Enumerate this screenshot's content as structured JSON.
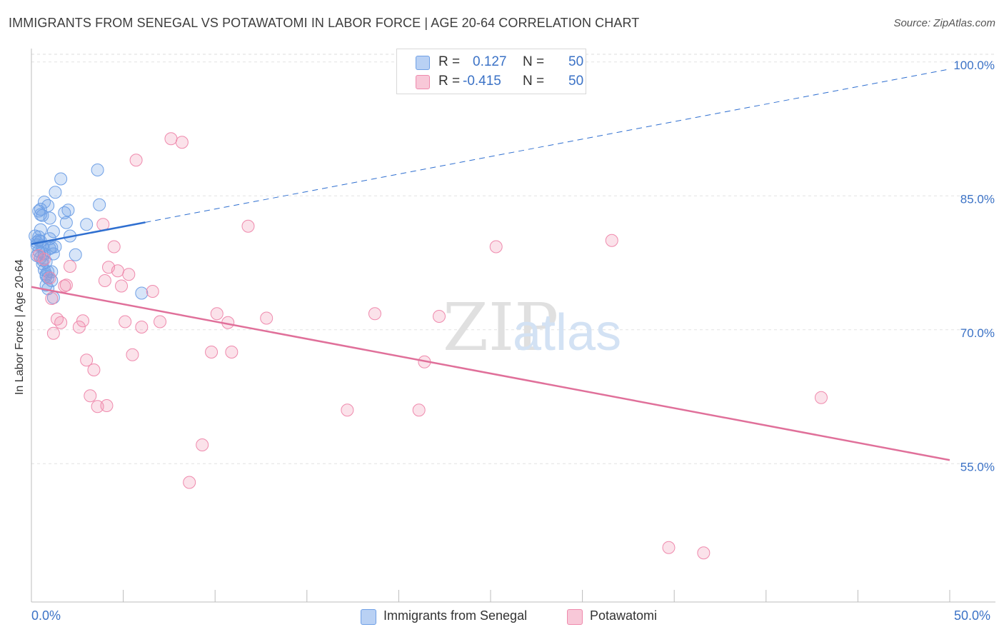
{
  "title": "IMMIGRANTS FROM SENEGAL VS POTAWATOMI IN LABOR FORCE | AGE 20-64 CORRELATION CHART",
  "source": "Source: ZipAtlas.com",
  "watermark": {
    "zip": "ZIP",
    "atlas": "atlas"
  },
  "legend": {
    "rows": [
      {
        "r_label": "R =",
        "r_value": "0.127",
        "n_label": "N =",
        "n_value": "50",
        "color": "#6fa0e6"
      },
      {
        "r_label": "R =",
        "r_value": "-0.415",
        "n_label": "N =",
        "n_value": "50",
        "color": "#ef8aad"
      }
    ]
  },
  "bottom_legend": [
    {
      "label": "Immigrants from Senegal",
      "color": "#6fa0e6"
    },
    {
      "label": "Potawatomi",
      "color": "#ef8aad"
    }
  ],
  "x_axis": {
    "min_label": "0.0%",
    "max_label": "50.0%"
  },
  "chart_data": {
    "type": "scatter",
    "title": "IMMIGRANTS FROM SENEGAL VS POTAWATOMI IN LABOR FORCE | AGE 20-64 CORRELATION CHART",
    "xlabel": "",
    "ylabel": "In Labor Force | Age 20-64",
    "xlim": [
      0,
      50
    ],
    "ylim": [
      39.5,
      101.5
    ],
    "y_ticks": [
      {
        "value": 100,
        "label": "100.0%"
      },
      {
        "value": 85,
        "label": "85.0%"
      },
      {
        "value": 70,
        "label": "70.0%"
      },
      {
        "value": 55,
        "label": "55.0%"
      }
    ],
    "grid": true,
    "legend_position": "top-center",
    "series": [
      {
        "name": "Immigrants from Senegal",
        "color": "#6fa0e6",
        "line_color": "#2f6fd0",
        "R": 0.127,
        "N": 50,
        "trend": {
          "x_start": 0,
          "y_start": 79.6,
          "x_solid_end": 6.2,
          "x_end": 50,
          "y_end": 99.2
        },
        "points": [
          [
            0.4,
            83.3
          ],
          [
            0.5,
            82.9
          ],
          [
            0.5,
            81.2
          ],
          [
            0.4,
            80.4
          ],
          [
            0.4,
            80.0
          ],
          [
            0.3,
            79.5
          ],
          [
            0.6,
            79.2
          ],
          [
            0.4,
            78.8
          ],
          [
            0.7,
            78.5
          ],
          [
            0.5,
            78.1
          ],
          [
            0.6,
            77.8
          ],
          [
            0.8,
            77.6
          ],
          [
            0.7,
            76.7
          ],
          [
            0.8,
            76.2
          ],
          [
            0.9,
            75.8
          ],
          [
            1.1,
            75.5
          ],
          [
            0.8,
            75.0
          ],
          [
            0.9,
            74.6
          ],
          [
            1.2,
            73.6
          ],
          [
            0.5,
            83.5
          ],
          [
            0.7,
            84.3
          ],
          [
            0.9,
            83.9
          ],
          [
            1.3,
            85.4
          ],
          [
            1.6,
            86.9
          ],
          [
            1.0,
            82.5
          ],
          [
            1.8,
            83.1
          ],
          [
            1.9,
            82.0
          ],
          [
            2.0,
            83.4
          ],
          [
            1.2,
            81.0
          ],
          [
            2.1,
            80.5
          ],
          [
            1.0,
            80.2
          ],
          [
            0.5,
            79.9
          ],
          [
            1.3,
            79.3
          ],
          [
            1.0,
            79.1
          ],
          [
            1.2,
            78.5
          ],
          [
            2.4,
            78.4
          ],
          [
            3.0,
            81.8
          ],
          [
            3.6,
            87.9
          ],
          [
            3.7,
            84.0
          ],
          [
            0.6,
            82.8
          ],
          [
            6.0,
            74.1
          ],
          [
            0.3,
            78.3
          ],
          [
            0.6,
            79.4
          ],
          [
            1.1,
            79.2
          ],
          [
            0.9,
            76.5
          ],
          [
            1.1,
            76.5
          ],
          [
            0.8,
            76.0
          ],
          [
            0.2,
            80.5
          ],
          [
            0.3,
            79.8
          ],
          [
            0.6,
            77.4
          ]
        ]
      },
      {
        "name": "Potawatomi",
        "color": "#ef8aad",
        "line_color": "#e0709a",
        "R": -0.415,
        "N": 50,
        "trend": {
          "x_start": 0,
          "y_start": 74.8,
          "x_end": 50,
          "y_end": 55.4
        },
        "points": [
          [
            7.6,
            91.4
          ],
          [
            8.2,
            91.0
          ],
          [
            5.7,
            89.0
          ],
          [
            3.9,
            81.8
          ],
          [
            11.8,
            81.6
          ],
          [
            31.6,
            80.0
          ],
          [
            25.3,
            79.3
          ],
          [
            4.5,
            79.3
          ],
          [
            0.4,
            78.3
          ],
          [
            0.7,
            77.9
          ],
          [
            2.1,
            77.1
          ],
          [
            4.2,
            77.0
          ],
          [
            4.7,
            76.6
          ],
          [
            5.3,
            76.2
          ],
          [
            1.0,
            75.8
          ],
          [
            1.9,
            75.0
          ],
          [
            1.8,
            74.9
          ],
          [
            4.9,
            74.9
          ],
          [
            6.6,
            74.3
          ],
          [
            10.1,
            71.8
          ],
          [
            12.8,
            71.3
          ],
          [
            18.7,
            71.8
          ],
          [
            22.2,
            71.5
          ],
          [
            1.4,
            71.2
          ],
          [
            1.6,
            70.8
          ],
          [
            2.8,
            71.0
          ],
          [
            2.6,
            70.3
          ],
          [
            5.1,
            70.9
          ],
          [
            6.0,
            70.3
          ],
          [
            7.0,
            70.9
          ],
          [
            10.7,
            70.8
          ],
          [
            1.2,
            69.6
          ],
          [
            5.5,
            67.2
          ],
          [
            9.8,
            67.5
          ],
          [
            10.9,
            67.5
          ],
          [
            21.4,
            66.4
          ],
          [
            3.0,
            66.6
          ],
          [
            3.4,
            65.5
          ],
          [
            3.2,
            62.6
          ],
          [
            3.6,
            61.4
          ],
          [
            4.1,
            61.5
          ],
          [
            17.2,
            61.0
          ],
          [
            21.1,
            61.0
          ],
          [
            43.0,
            62.4
          ],
          [
            9.3,
            57.1
          ],
          [
            8.6,
            52.9
          ],
          [
            34.7,
            45.6
          ],
          [
            36.6,
            45.0
          ],
          [
            1.1,
            73.5
          ],
          [
            4.0,
            75.5
          ]
        ]
      }
    ]
  }
}
